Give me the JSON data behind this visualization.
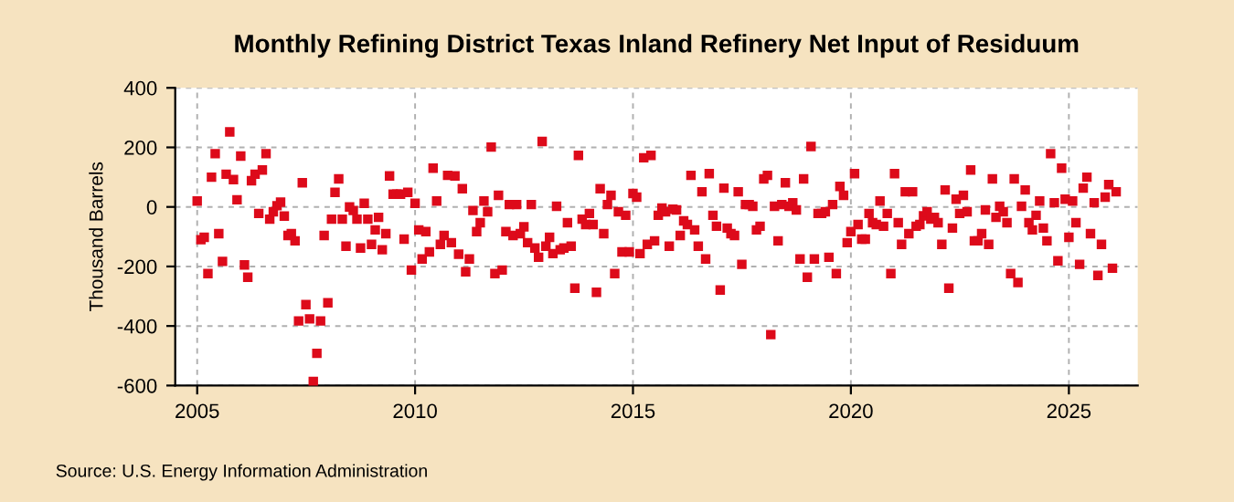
{
  "chart_data": {
    "type": "scatter",
    "title": "Monthly Refining District Texas Inland Refinery Net Input of Residuum",
    "ylabel": "Thousand Barrels",
    "annotations": [
      "Source: U.S. Energy Information Administration"
    ],
    "x": [
      "2005-01",
      "2005-02",
      "2005-03",
      "2005-04",
      "2005-05",
      "2005-06",
      "2005-07",
      "2005-08",
      "2005-09",
      "2005-10",
      "2005-11",
      "2005-12",
      "2006-01",
      "2006-02",
      "2006-03",
      "2006-04",
      "2006-05",
      "2006-06",
      "2006-07",
      "2006-08",
      "2006-09",
      "2006-10",
      "2006-11",
      "2006-12",
      "2007-01",
      "2007-02",
      "2007-03",
      "2007-04",
      "2007-05",
      "2007-06",
      "2007-07",
      "2007-08",
      "2007-09",
      "2007-10",
      "2007-11",
      "2007-12",
      "2008-01",
      "2008-02",
      "2008-03",
      "2008-04",
      "2008-05",
      "2008-06",
      "2008-07",
      "2008-08",
      "2008-09",
      "2008-10",
      "2008-11",
      "2008-12",
      "2009-01",
      "2009-02",
      "2009-03",
      "2009-04",
      "2009-05",
      "2009-06",
      "2009-07",
      "2009-08",
      "2009-09",
      "2009-10",
      "2009-11",
      "2009-12",
      "2010-01",
      "2010-02",
      "2010-03",
      "2010-04",
      "2010-05",
      "2010-06",
      "2010-07",
      "2010-08",
      "2010-09",
      "2010-10",
      "2010-11",
      "2010-12",
      "2011-01",
      "2011-02",
      "2011-03",
      "2011-04",
      "2011-05",
      "2011-06",
      "2011-07",
      "2011-08",
      "2011-09",
      "2011-10",
      "2011-11",
      "2011-12",
      "2012-01",
      "2012-02",
      "2012-03",
      "2012-04",
      "2012-05",
      "2012-06",
      "2012-07",
      "2012-08",
      "2012-09",
      "2012-10",
      "2012-11",
      "2012-12",
      "2013-01",
      "2013-02",
      "2013-03",
      "2013-04",
      "2013-05",
      "2013-06",
      "2013-07",
      "2013-08",
      "2013-09",
      "2013-10",
      "2013-11",
      "2013-12",
      "2014-01",
      "2014-02",
      "2014-03",
      "2014-04",
      "2014-05",
      "2014-06",
      "2014-07",
      "2014-08",
      "2014-09",
      "2014-10",
      "2014-11",
      "2014-12",
      "2015-01",
      "2015-02",
      "2015-03",
      "2015-04",
      "2015-05",
      "2015-06",
      "2015-07",
      "2015-08",
      "2015-09",
      "2015-10",
      "2015-11",
      "2015-12",
      "2016-01",
      "2016-02",
      "2016-03",
      "2016-04",
      "2016-05",
      "2016-06",
      "2016-07",
      "2016-08",
      "2016-09",
      "2016-10",
      "2016-11",
      "2016-12",
      "2017-01",
      "2017-02",
      "2017-03",
      "2017-04",
      "2017-05",
      "2017-06",
      "2017-07",
      "2017-08",
      "2017-09",
      "2017-10",
      "2017-11",
      "2017-12",
      "2018-01",
      "2018-02",
      "2018-03",
      "2018-04",
      "2018-05",
      "2018-06",
      "2018-07",
      "2018-08",
      "2018-09",
      "2018-10",
      "2018-11",
      "2018-12",
      "2019-01",
      "2019-02",
      "2019-03",
      "2019-04",
      "2019-05",
      "2019-06",
      "2019-07",
      "2019-08",
      "2019-09",
      "2019-10",
      "2019-11",
      "2019-12",
      "2020-01",
      "2020-02",
      "2020-03",
      "2020-04",
      "2020-05",
      "2020-06",
      "2020-07",
      "2020-08",
      "2020-09",
      "2020-10",
      "2020-11",
      "2020-12",
      "2021-01",
      "2021-02",
      "2021-03",
      "2021-04",
      "2021-05",
      "2021-06",
      "2021-07",
      "2021-08",
      "2021-09",
      "2021-10",
      "2021-11",
      "2021-12",
      "2022-01",
      "2022-02",
      "2022-03",
      "2022-04",
      "2022-05",
      "2022-06",
      "2022-07",
      "2022-08",
      "2022-09",
      "2022-10",
      "2022-11",
      "2022-12",
      "2023-01",
      "2023-02",
      "2023-03",
      "2023-04",
      "2023-05",
      "2023-06",
      "2023-07",
      "2023-08",
      "2023-09",
      "2023-10",
      "2023-11",
      "2023-12",
      "2024-01",
      "2024-02",
      "2024-03",
      "2024-04",
      "2024-05",
      "2024-06",
      "2024-07",
      "2024-08",
      "2024-09",
      "2024-10",
      "2024-11",
      "2024-12",
      "2025-01",
      "2025-02",
      "2025-03",
      "2025-04",
      "2025-05",
      "2025-06",
      "2025-07",
      "2025-08",
      "2025-09",
      "2025-10",
      "2025-11",
      "2025-12",
      "2026-01",
      "2026-02"
    ],
    "series": [
      {
        "color": "#dd0a1a",
        "values": [
          20,
          -110,
          -102,
          -224,
          100,
          179,
          -90,
          -183,
          110,
          252,
          92,
          24,
          171,
          -195,
          -236,
          88,
          110,
          -22,
          124,
          179,
          -41,
          -16,
          4,
          16,
          -31,
          -96,
          -90,
          -114,
          -383,
          81,
          -328,
          -376,
          -586,
          -492,
          -383,
          -96,
          -322,
          -41,
          49,
          94,
          -41,
          -132,
          0,
          -12,
          -41,
          -138,
          12,
          -41,
          -126,
          -77,
          -35,
          -144,
          -90,
          104,
          43,
          43,
          43,
          -108,
          49,
          -212,
          12,
          -77,
          -175,
          -83,
          -151,
          130,
          20,
          -126,
          -96,
          106,
          -120,
          104,
          -159,
          61,
          -218,
          -175,
          -12,
          -83,
          -53,
          20,
          -16,
          201,
          -224,
          39,
          -212,
          -83,
          8,
          -96,
          8,
          -90,
          -67,
          -120,
          8,
          -138,
          -169,
          220,
          -132,
          -102,
          -157,
          2,
          -144,
          -138,
          -53,
          -132,
          -273,
          173,
          -41,
          -59,
          -22,
          -59,
          -287,
          61,
          -90,
          8,
          39,
          -224,
          -16,
          -151,
          -28,
          -151,
          45,
          33,
          -157,
          165,
          -126,
          173,
          -114,
          -28,
          -4,
          -16,
          -132,
          -8,
          -10,
          -96,
          -47,
          -59,
          106,
          -77,
          -132,
          51,
          -175,
          112,
          -28,
          -65,
          -279,
          63,
          -71,
          -90,
          -96,
          51,
          -193,
          8,
          8,
          2,
          -77,
          -65,
          94,
          106,
          -429,
          2,
          -114,
          8,
          81,
          2,
          14,
          -10,
          -175,
          94,
          -236,
          203,
          -175,
          -22,
          -22,
          -16,
          -169,
          8,
          -224,
          69,
          39,
          -120,
          -83,
          112,
          -59,
          -108,
          -108,
          -22,
          -53,
          -59,
          20,
          -65,
          -22,
          -224,
          112,
          -53,
          -126,
          51,
          -90,
          51,
          -65,
          -59,
          -30,
          -16,
          -41,
          -35,
          -53,
          -126,
          57,
          -273,
          -71,
          26,
          -22,
          39,
          -16,
          124,
          -114,
          -114,
          -90,
          -10,
          -126,
          94,
          -35,
          2,
          -16,
          -53,
          -224,
          94,
          -254,
          2,
          57,
          -53,
          -77,
          -28,
          20,
          -71,
          -114,
          179,
          14,
          -181,
          130,
          26,
          -102,
          20,
          -53,
          -193,
          63,
          100,
          -90,
          14,
          -230,
          -126,
          33,
          75,
          -206,
          51
        ]
      }
    ],
    "xlim": [
      "2004-07",
      "2026-08"
    ],
    "xticks": [
      "2005",
      "2010",
      "2015",
      "2020",
      "2025"
    ],
    "ylim": [
      -600,
      400
    ],
    "yticks": [
      -600,
      -400,
      -200,
      0,
      200,
      400
    ],
    "grid": true,
    "marker": "square"
  }
}
